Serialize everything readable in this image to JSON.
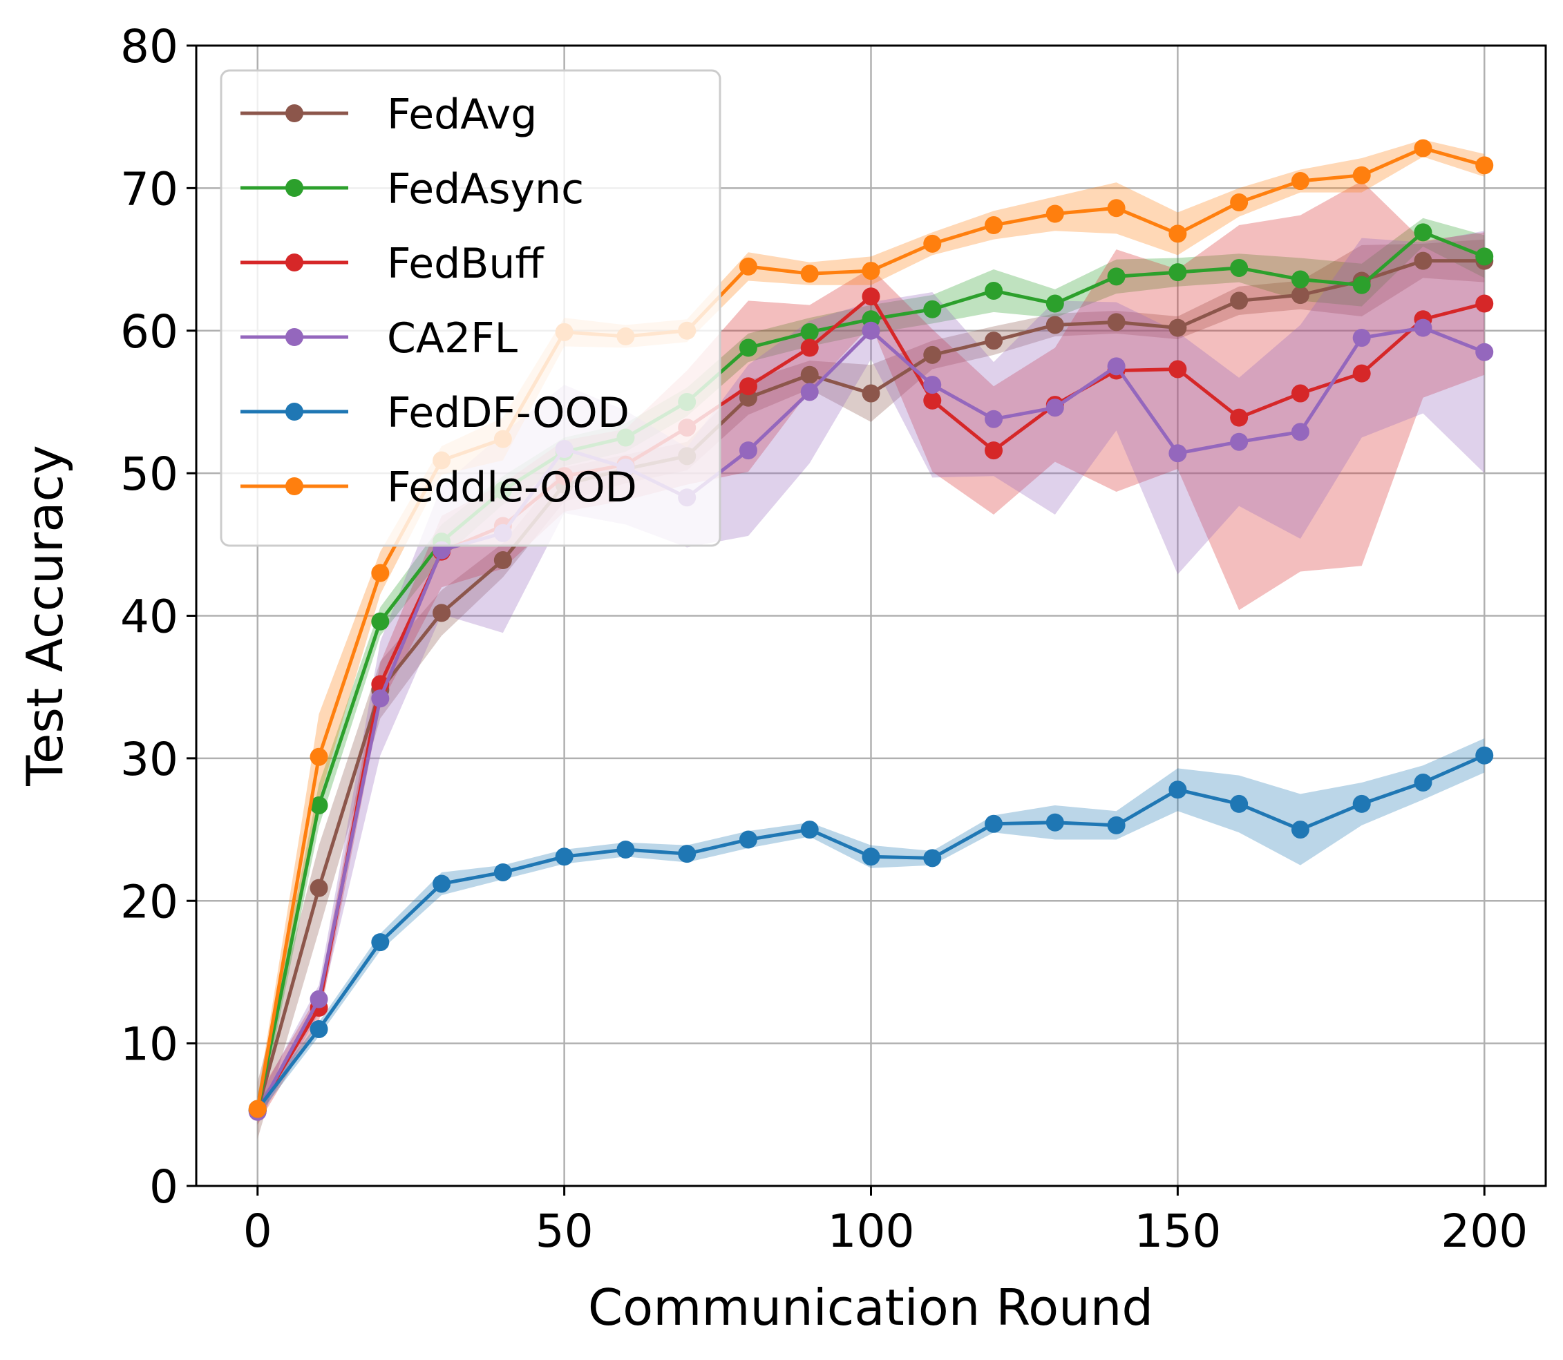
{
  "chart_data": {
    "type": "line",
    "title": "",
    "xlabel": "Communication Round",
    "ylabel": "Test Accuracy",
    "xlim": [
      -10,
      210
    ],
    "ylim": [
      0,
      80
    ],
    "xticks": [
      0,
      50,
      100,
      150,
      200
    ],
    "yticks": [
      0,
      10,
      20,
      30,
      40,
      50,
      60,
      70,
      80
    ],
    "grid": true,
    "legend_position": "top-left",
    "x": [
      0,
      10,
      20,
      30,
      40,
      50,
      60,
      70,
      80,
      90,
      100,
      110,
      120,
      130,
      140,
      150,
      160,
      170,
      180,
      190,
      200
    ],
    "series": [
      {
        "name": "FedAvg",
        "color": "#8c564b",
        "values": [
          5.3,
          20.9,
          34.8,
          40.2,
          43.9,
          49.2,
          50.3,
          51.2,
          55.3,
          56.9,
          55.6,
          58.3,
          59.3,
          60.4,
          60.6,
          60.2,
          62.1,
          62.5,
          63.5,
          64.9,
          64.9
        ],
        "band": [
          2.0,
          3.0,
          2.0,
          1.6,
          1.2,
          1.2,
          1.0,
          1.0,
          1.2,
          1.0,
          2.0,
          1.0,
          1.0,
          0.8,
          0.8,
          0.8,
          1.0,
          1.0,
          2.5,
          1.2,
          1.5
        ]
      },
      {
        "name": "FedAsync",
        "color": "#2ca02c",
        "values": [
          5.3,
          26.7,
          39.6,
          45.2,
          48.8,
          51.5,
          52.5,
          55.0,
          58.8,
          59.9,
          60.8,
          61.5,
          62.8,
          61.9,
          63.8,
          64.1,
          64.4,
          63.6,
          63.2,
          66.9,
          65.2
        ],
        "band": [
          1.0,
          1.5,
          1.0,
          1.2,
          1.0,
          1.0,
          1.0,
          1.0,
          1.0,
          1.0,
          1.0,
          1.0,
          1.5,
          1.0,
          1.2,
          1.0,
          1.0,
          1.5,
          1.5,
          1.0,
          1.5
        ]
      },
      {
        "name": "FedBuff",
        "color": "#d62728",
        "values": [
          5.3,
          12.5,
          35.2,
          44.5,
          46.3,
          49.8,
          50.6,
          53.2,
          56.1,
          58.8,
          62.4,
          55.1,
          51.6,
          54.8,
          57.2,
          57.3,
          53.9,
          55.6,
          57.0,
          60.8,
          61.9
        ],
        "band": [
          1.0,
          1.0,
          1.5,
          2.5,
          3.0,
          2.5,
          2.5,
          4.0,
          6.0,
          3.0,
          2.0,
          5.0,
          4.5,
          4.0,
          8.5,
          7.0,
          13.5,
          12.5,
          13.5,
          5.5,
          5.0
        ]
      },
      {
        "name": "CA2FL",
        "color": "#9467bd",
        "values": [
          5.2,
          13.1,
          34.2,
          44.6,
          45.8,
          51.7,
          50.4,
          48.3,
          51.6,
          55.7,
          60.0,
          56.2,
          53.8,
          54.6,
          57.5,
          51.4,
          52.2,
          52.9,
          59.5,
          60.2,
          58.5
        ],
        "band": [
          0.8,
          1.0,
          4.0,
          4.5,
          7.0,
          4.5,
          4.0,
          3.5,
          6.0,
          5.0,
          2.0,
          6.5,
          4.0,
          7.5,
          4.5,
          8.5,
          4.5,
          7.5,
          7.0,
          6.0,
          8.5
        ]
      },
      {
        "name": "FedDF-OOD",
        "color": "#1f77b4",
        "values": [
          5.4,
          11.0,
          17.1,
          21.2,
          22.0,
          23.1,
          23.6,
          23.3,
          24.3,
          25.0,
          23.1,
          23.0,
          25.4,
          25.5,
          25.3,
          27.8,
          26.8,
          25.0,
          26.8,
          28.3,
          30.2
        ],
        "band": [
          0.5,
          0.5,
          0.6,
          0.8,
          0.5,
          0.5,
          0.5,
          0.6,
          0.6,
          0.5,
          0.8,
          0.5,
          0.6,
          1.2,
          1.0,
          1.5,
          2.0,
          2.5,
          1.5,
          1.2,
          1.2
        ]
      },
      {
        "name": "Feddle-OOD",
        "color": "#ff7f0e",
        "values": [
          5.4,
          30.1,
          43.0,
          50.9,
          52.4,
          59.9,
          59.6,
          60.0,
          64.5,
          64.0,
          64.2,
          66.1,
          67.4,
          68.2,
          68.6,
          66.8,
          69.0,
          70.5,
          70.9,
          72.8,
          71.6
        ],
        "band": [
          0.8,
          3.0,
          1.5,
          1.0,
          1.5,
          1.0,
          0.8,
          0.8,
          1.0,
          0.8,
          1.0,
          0.8,
          1.0,
          1.2,
          1.8,
          1.5,
          1.0,
          0.8,
          1.2,
          0.6,
          0.8
        ]
      }
    ]
  }
}
